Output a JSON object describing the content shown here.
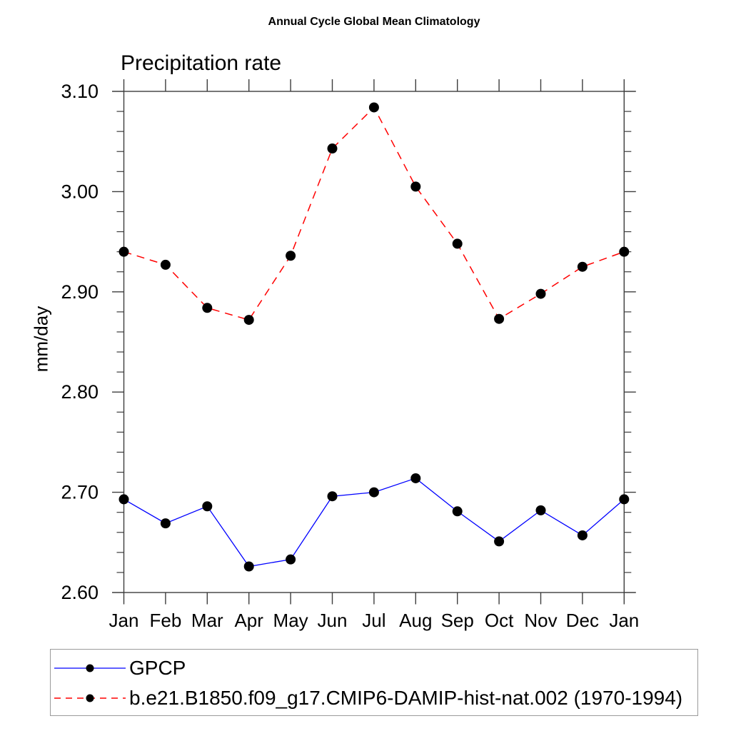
{
  "page": {
    "background": "#ffffff"
  },
  "header": {
    "title": "Annual Cycle Global Mean Climatology",
    "subtitle": "Precipitation rate"
  },
  "axes": {
    "y_title": "mm/day",
    "y_tick_labels": [
      "2.60",
      "2.70",
      "2.80",
      "2.90",
      "3.00",
      "3.10"
    ],
    "x_tick_labels": [
      "Jan",
      "Feb",
      "Mar",
      "Apr",
      "May",
      "Jun",
      "Jul",
      "Aug",
      "Sep",
      "Oct",
      "Nov",
      "Dec",
      "Jan"
    ]
  },
  "legend": {
    "entries": [
      {
        "label": "GPCP",
        "line_color": "#0000ff",
        "line_style": "solid",
        "marker": "filled-circle",
        "marker_color": "#000000"
      },
      {
        "label": "b.e21.B1850.f09_g17.CMIP6-DAMIP-hist-nat.002 (1970-1994)",
        "line_color": "#ff0000",
        "line_style": "dashed",
        "marker": "filled-circle",
        "marker_color": "#000000"
      }
    ]
  },
  "chart_data": {
    "type": "line",
    "title": "Annual Cycle Global Mean Climatology",
    "subtitle": "Precipitation rate",
    "xlabel": "",
    "ylabel": "mm/day",
    "categories": [
      "Jan",
      "Feb",
      "Mar",
      "Apr",
      "May",
      "Jun",
      "Jul",
      "Aug",
      "Sep",
      "Oct",
      "Nov",
      "Dec",
      "Jan"
    ],
    "series": [
      {
        "name": "GPCP",
        "color": "#0000ff",
        "line_style": "solid",
        "marker": "circle",
        "marker_color": "#000000",
        "values": [
          2.693,
          2.669,
          2.686,
          2.626,
          2.633,
          2.696,
          2.7,
          2.714,
          2.681,
          2.651,
          2.682,
          2.657,
          2.693
        ]
      },
      {
        "name": "b.e21.B1850.f09_g17.CMIP6-DAMIP-hist-nat.002 (1970-1994)",
        "color": "#ff0000",
        "line_style": "dashed",
        "marker": "circle",
        "marker_color": "#000000",
        "values": [
          2.94,
          2.927,
          2.884,
          2.872,
          2.936,
          3.043,
          3.084,
          3.005,
          2.948,
          2.873,
          2.898,
          2.925,
          2.94
        ]
      }
    ],
    "ylim": [
      2.6,
      3.1
    ],
    "ytick_major_step": 0.1,
    "ytick_minor_step": 0.02,
    "grid": false,
    "legend_position": "bottom-left-box",
    "axis_color": "#3d3d3d"
  }
}
